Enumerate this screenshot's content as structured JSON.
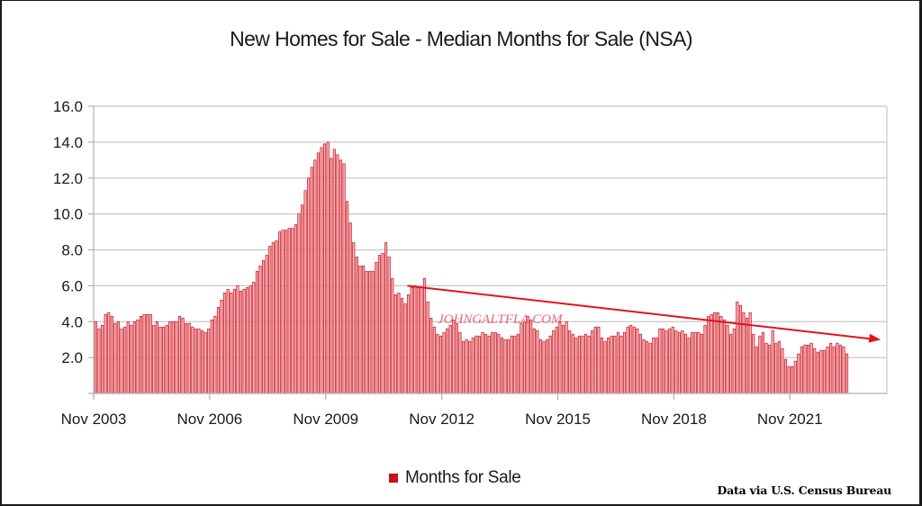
{
  "chart_data": {
    "type": "bar",
    "title": "New Homes for Sale - Median Months for Sale (NSA)",
    "xlabel": "",
    "ylabel": "",
    "ylim": [
      0,
      16
    ],
    "yticks": [
      "2.0",
      "4.0",
      "6.0",
      "8.0",
      "10.0",
      "12.0",
      "14.0",
      "16.0"
    ],
    "ytick_values": [
      2,
      4,
      6,
      8,
      10,
      12,
      14,
      16
    ],
    "xtick_labels": [
      "Nov 2003",
      "Nov 2006",
      "Nov 2009",
      "Nov 2012",
      "Nov 2015",
      "Nov 2018",
      "Nov 2021"
    ],
    "xtick_month_index": [
      0,
      36,
      72,
      108,
      144,
      180,
      216
    ],
    "start_month": "Nov 2003",
    "grid": true,
    "legend_position": "bottom",
    "series": [
      {
        "name": "Months for Sale",
        "color": "#c9101c",
        "values": [
          4.0,
          3.6,
          3.8,
          4.4,
          4.5,
          4.3,
          3.9,
          4.0,
          3.6,
          3.7,
          4.0,
          3.8,
          4.0,
          4.1,
          4.3,
          4.4,
          4.4,
          4.4,
          3.8,
          4.0,
          3.7,
          3.7,
          3.8,
          4.0,
          4.0,
          4.0,
          4.3,
          4.2,
          3.9,
          3.9,
          3.7,
          3.6,
          3.6,
          3.5,
          3.4,
          3.6,
          4.1,
          4.3,
          4.8,
          5.2,
          5.6,
          5.8,
          5.6,
          5.8,
          6.0,
          5.7,
          5.8,
          5.9,
          6.0,
          6.2,
          6.8,
          7.1,
          7.4,
          7.7,
          8.2,
          8.4,
          8.5,
          9.0,
          9.1,
          9.1,
          9.2,
          9.2,
          9.4,
          10.0,
          10.5,
          11.3,
          12.0,
          12.6,
          13.0,
          13.4,
          13.7,
          13.9,
          14.0,
          13.1,
          13.6,
          13.3,
          13.0,
          12.8,
          10.7,
          9.5,
          8.4,
          7.6,
          7.1,
          7.1,
          6.8,
          6.8,
          6.8,
          7.3,
          7.7,
          7.8,
          8.4,
          7.6,
          6.4,
          5.5,
          5.6,
          5.3,
          5.0,
          5.5,
          5.9,
          6.0,
          5.9,
          5.9,
          6.4,
          5.1,
          4.2,
          3.7,
          3.3,
          3.2,
          3.4,
          3.6,
          3.8,
          4.1,
          3.9,
          3.4,
          2.9,
          3.0,
          2.9,
          3.1,
          3.2,
          3.2,
          3.4,
          3.3,
          3.2,
          3.4,
          3.4,
          3.3,
          3.1,
          3.0,
          3.0,
          3.2,
          3.2,
          3.3,
          3.9,
          4.0,
          4.3,
          4.1,
          3.6,
          3.5,
          3.0,
          2.9,
          3.0,
          3.2,
          3.5,
          3.7,
          4.0,
          3.8,
          4.0,
          3.5,
          3.3,
          3.1,
          3.2,
          3.2,
          3.3,
          3.2,
          3.5,
          3.7,
          3.7,
          3.1,
          2.9,
          3.1,
          3.2,
          3.2,
          3.4,
          3.2,
          3.4,
          3.7,
          3.8,
          3.7,
          3.6,
          3.3,
          3.0,
          2.9,
          2.8,
          3.1,
          3.1,
          3.6,
          3.6,
          3.5,
          3.6,
          3.7,
          3.5,
          3.4,
          3.5,
          3.3,
          3.1,
          3.4,
          3.4,
          3.4,
          3.3,
          3.8,
          4.3,
          4.4,
          4.5,
          4.5,
          4.3,
          4.1,
          3.8,
          3.3,
          3.6,
          5.1,
          4.9,
          4.5,
          4.2,
          4.5,
          3.3,
          2.6,
          3.2,
          3.4,
          2.8,
          2.7,
          3.5,
          2.8,
          2.9,
          2.5,
          1.9,
          1.5,
          1.5,
          1.8,
          2.2,
          2.6,
          2.7,
          2.7,
          2.8,
          2.5,
          2.3,
          2.4,
          2.4,
          2.6,
          2.8,
          2.6,
          2.8,
          2.7,
          2.6,
          2.2
        ]
      }
    ],
    "annotations": [
      {
        "type": "trend-arrow",
        "color": "#e0141e",
        "from": {
          "month_index": 97,
          "value": 6.0
        },
        "to": {
          "month_index": 245,
          "value": 3.0
        }
      },
      {
        "type": "watermark",
        "text": "JOHNGALTFLA.COM"
      }
    ]
  },
  "legend": {
    "label": "Months for Sale"
  },
  "source": {
    "text": "Data via U.S. Census Bureau"
  }
}
